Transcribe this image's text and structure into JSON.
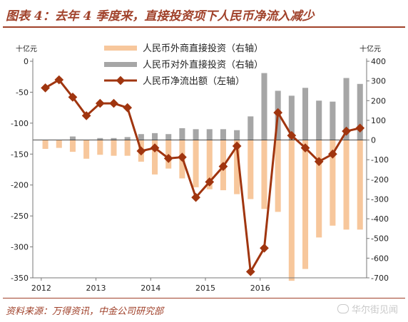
{
  "title": "图表 4：去年 4 季度来，直接投资项下人民币净流入减少",
  "source": "资料来源：万得资讯，中金公司研究部",
  "watermark": "华尔街见闻",
  "colors": {
    "title": "#a0412a",
    "fdi_bar": "#f7c79c",
    "odi_bar": "#a6a6a6",
    "net_line": "#a0350f"
  },
  "chart_data": {
    "type": "bar+line",
    "left_axis": {
      "unit": "十亿元",
      "ylim": [
        -350,
        0
      ],
      "ticks": [
        0,
        -50,
        -100,
        -150,
        -200,
        -250,
        -300,
        -350
      ]
    },
    "right_axis": {
      "unit": "十亿元",
      "ylim": [
        -700,
        400
      ],
      "ticks": [
        400,
        300,
        200,
        100,
        0,
        -100,
        -200,
        -300,
        -400,
        -500,
        -600,
        -700
      ]
    },
    "x_ticks": [
      "2012",
      "2013",
      "2014",
      "2015",
      "2016"
    ],
    "grid": false,
    "legend_position": "top-center",
    "series": [
      {
        "name": "人民币外商直接投资（右轴）",
        "type": "bar",
        "axis": "right",
        "values": [
          -45,
          -40,
          -60,
          -95,
          -75,
          -80,
          -80,
          -110,
          -175,
          -145,
          -195,
          -240,
          -250,
          -255,
          -275,
          -300,
          -350,
          -365,
          -715,
          -655,
          -495,
          -435,
          -455,
          -455
        ]
      },
      {
        "name": "人民币对外直接投资（右轴）",
        "type": "bar",
        "axis": "right",
        "values": [
          0,
          0,
          18,
          0,
          10,
          10,
          15,
          30,
          35,
          30,
          60,
          55,
          55,
          55,
          50,
          120,
          340,
          250,
          225,
          265,
          200,
          195,
          315,
          285
        ]
      },
      {
        "name": "人民币净流出额（左轴）",
        "type": "line",
        "axis": "left",
        "values": [
          -43,
          -30,
          -58,
          -88,
          -68,
          -68,
          -75,
          -145,
          -140,
          -157,
          -155,
          -220,
          -195,
          -170,
          -137,
          -340,
          -302,
          -83,
          -120,
          -140,
          -162,
          -150,
          -113,
          -108
        ]
      }
    ]
  }
}
